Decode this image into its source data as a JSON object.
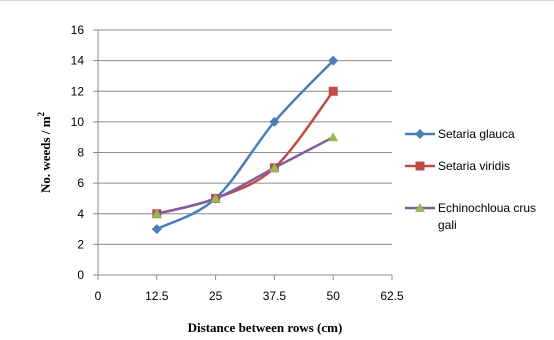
{
  "chart_data": {
    "type": "line",
    "xlabel": "Distance between rows (cm)",
    "ylabel": {
      "text": "No. weeds / m",
      "superscript": "2"
    },
    "x_ticks": [
      "0",
      "12.5",
      "25",
      "37.5",
      "50",
      "62.5"
    ],
    "y_ticks": [
      "0",
      "2",
      "4",
      "6",
      "8",
      "10",
      "12",
      "14",
      "16"
    ],
    "xlim": [
      0,
      62.5
    ],
    "ylim": [
      0,
      16
    ],
    "grid": "horizontal",
    "legend_position": "right",
    "x": [
      12.5,
      25,
      37.5,
      50
    ],
    "series": [
      {
        "name": "Setaria glauca",
        "legend_lines": [
          "Setaria glauca"
        ],
        "values": [
          3,
          5,
          10,
          14
        ],
        "color": "#4a7ebb",
        "marker": "diamond"
      },
      {
        "name": "Setaria viridis",
        "legend_lines": [
          "Setaria viridis"
        ],
        "values": [
          4,
          5,
          7,
          12
        ],
        "color": "#be4b48",
        "marker": "square"
      },
      {
        "name": "Echinochloua crus gali",
        "legend_lines": [
          "Echinochloua crus",
          "gali"
        ],
        "values": [
          4,
          5,
          7,
          9
        ],
        "color": "#7d5fa0",
        "marker_color": "#98b954",
        "marker": "triangle"
      }
    ]
  }
}
